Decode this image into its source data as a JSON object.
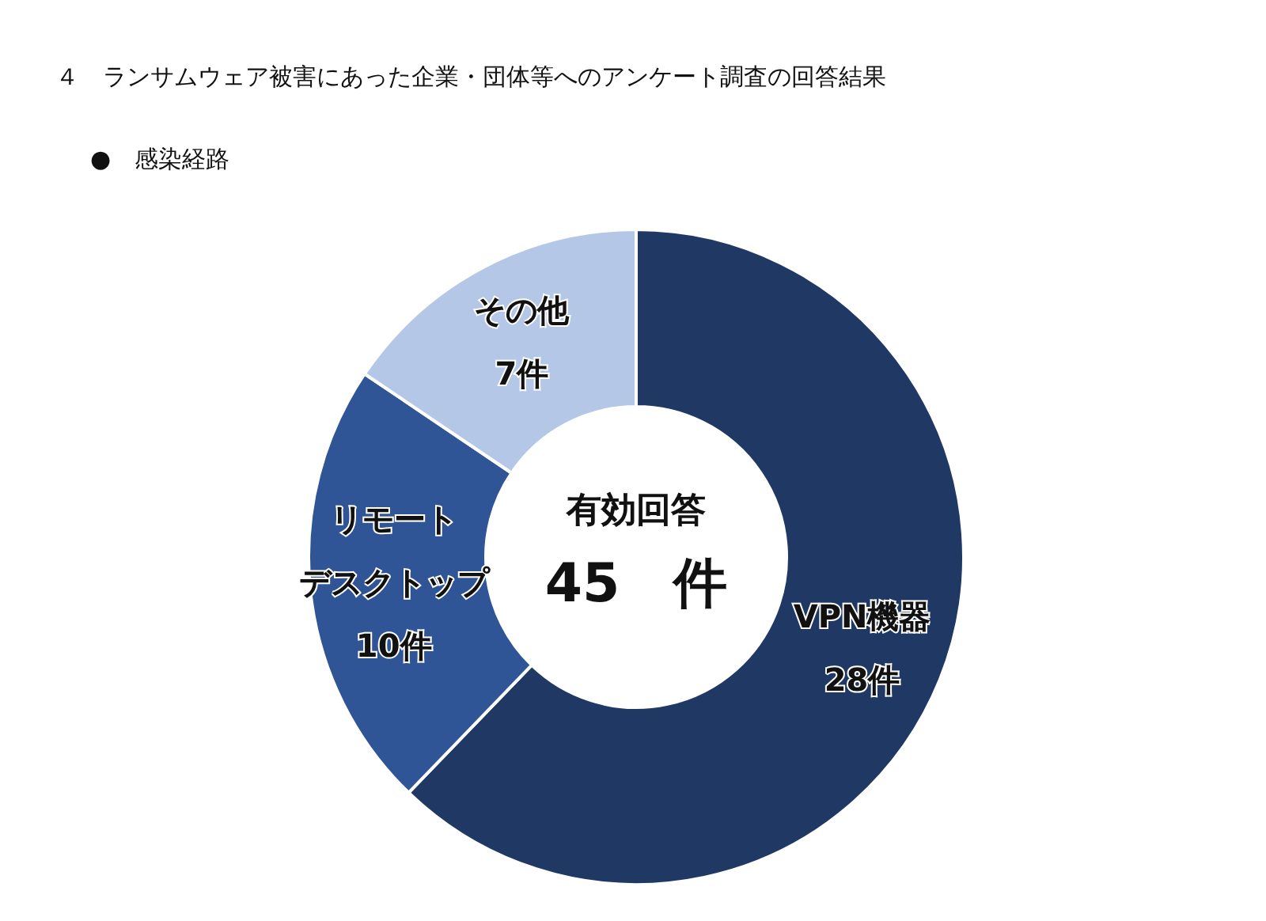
{
  "chart_data": {
    "type": "donut",
    "title": "４　ランサムウェア被害にあった企業・団体等へのアンケート調査の回答結果",
    "subtitle": "●　感染経路",
    "categories": [
      "VPN機器",
      "リモートデスクトップ",
      "その他"
    ],
    "values": [
      28,
      10,
      7
    ],
    "value_labels": [
      "28件",
      "10件",
      "7件"
    ],
    "colors": [
      "#203864",
      "#2f5597",
      "#b4c7e7"
    ],
    "annotations": [
      "有効回答",
      "45　件"
    ],
    "legend": false
  }
}
